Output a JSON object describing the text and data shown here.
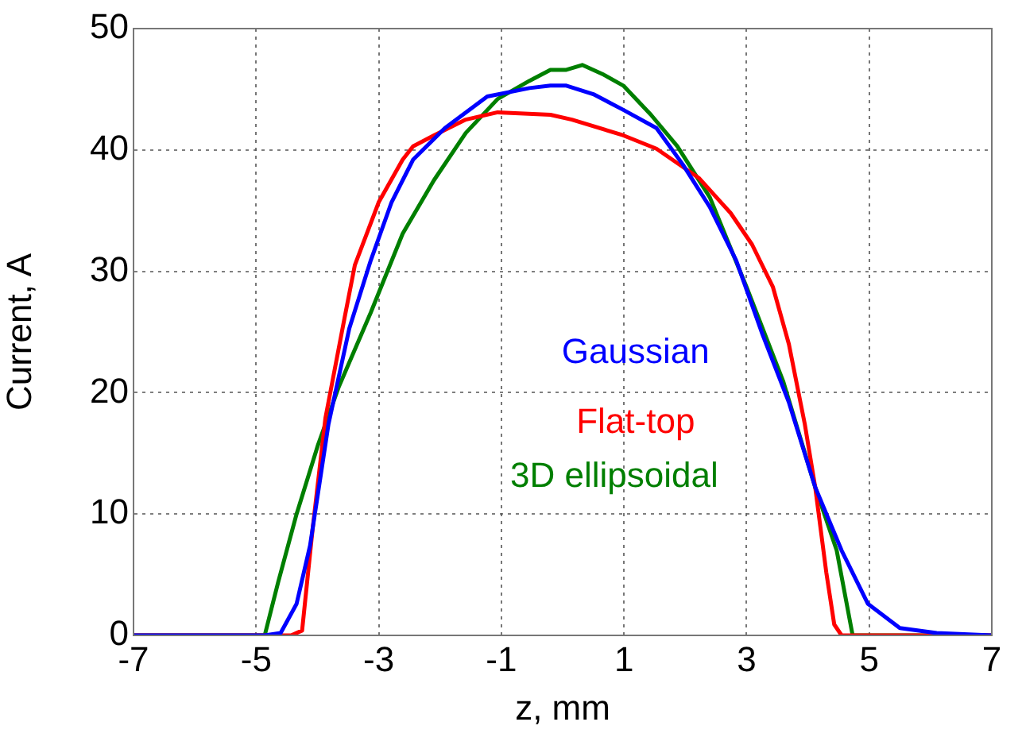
{
  "chart_data": {
    "type": "line",
    "xlabel": "z, mm",
    "ylabel": "Current, A",
    "xlim": [
      -7,
      7
    ],
    "xticks": [
      -7,
      -5,
      -3,
      -1,
      1,
      3,
      5,
      7
    ],
    "ylim": [
      0,
      50
    ],
    "yticks": [
      0,
      10,
      20,
      30,
      40,
      50
    ],
    "grid": true,
    "legend": false,
    "marker": "none",
    "line_style": "solid",
    "series": [
      {
        "name": "Gaussian",
        "color": "#0000ff",
        "x": [
          -7,
          -5.64,
          -4.86,
          -4.6,
          -4.34,
          -4.12,
          -3.82,
          -3.48,
          -3.13,
          -2.79,
          -2.44,
          -1.92,
          -1.23,
          -0.54,
          -0.2,
          0.06,
          0.5,
          0.99,
          1.53,
          1.96,
          2.4,
          2.83,
          3.26,
          3.69,
          4.12,
          4.55,
          4.98,
          5.5,
          6.1,
          7
        ],
        "values": [
          0,
          0,
          0,
          0.2,
          2.6,
          7.4,
          17.4,
          25.3,
          30.9,
          35.7,
          39.2,
          41.8,
          44.4,
          45.1,
          45.3,
          45.3,
          44.6,
          43.3,
          41.8,
          38.8,
          35.3,
          30.9,
          24.8,
          19.2,
          12.2,
          7,
          2.6,
          0.6,
          0.2,
          0
        ]
      },
      {
        "name": "Flat-top",
        "color": "#ff0000",
        "x": [
          -7,
          -4.43,
          -4.25,
          -4.08,
          -3.87,
          -3.56,
          -3.39,
          -3,
          -2.61,
          -2.44,
          -2.1,
          -1.58,
          -1.06,
          -0.2,
          0.15,
          0.99,
          1.53,
          2.22,
          2.74,
          3.09,
          3.43,
          3.69,
          3.95,
          4.12,
          4.3,
          4.43,
          4.55,
          7
        ],
        "values": [
          0,
          0,
          0.4,
          8.7,
          17.9,
          26.1,
          30.5,
          35.7,
          39.2,
          40.3,
          41.2,
          42.5,
          43.1,
          42.9,
          42.5,
          41.2,
          40.1,
          37.7,
          34.8,
          32.2,
          28.7,
          24,
          17.4,
          12.2,
          5.2,
          0.9,
          0,
          0
        ]
      },
      {
        "name": "3D ellipsoidal",
        "color": "#007f00",
        "x": [
          -7,
          -4.86,
          -4.64,
          -4.34,
          -3.99,
          -3.65,
          -3.13,
          -2.61,
          -2.1,
          -1.58,
          -1.06,
          -0.54,
          -0.2,
          0.06,
          0.32,
          0.67,
          0.99,
          1.44,
          1.87,
          2.4,
          3,
          3.6,
          4.12,
          4.47,
          4.73,
          7
        ],
        "values": [
          0,
          0,
          4.4,
          10,
          15.7,
          20.5,
          26.6,
          33.1,
          37.5,
          41.4,
          44.2,
          45.7,
          46.6,
          46.6,
          47,
          46.2,
          45.3,
          42.9,
          40.3,
          36.1,
          28.7,
          20.9,
          12.2,
          7,
          0,
          0
        ]
      }
    ]
  }
}
